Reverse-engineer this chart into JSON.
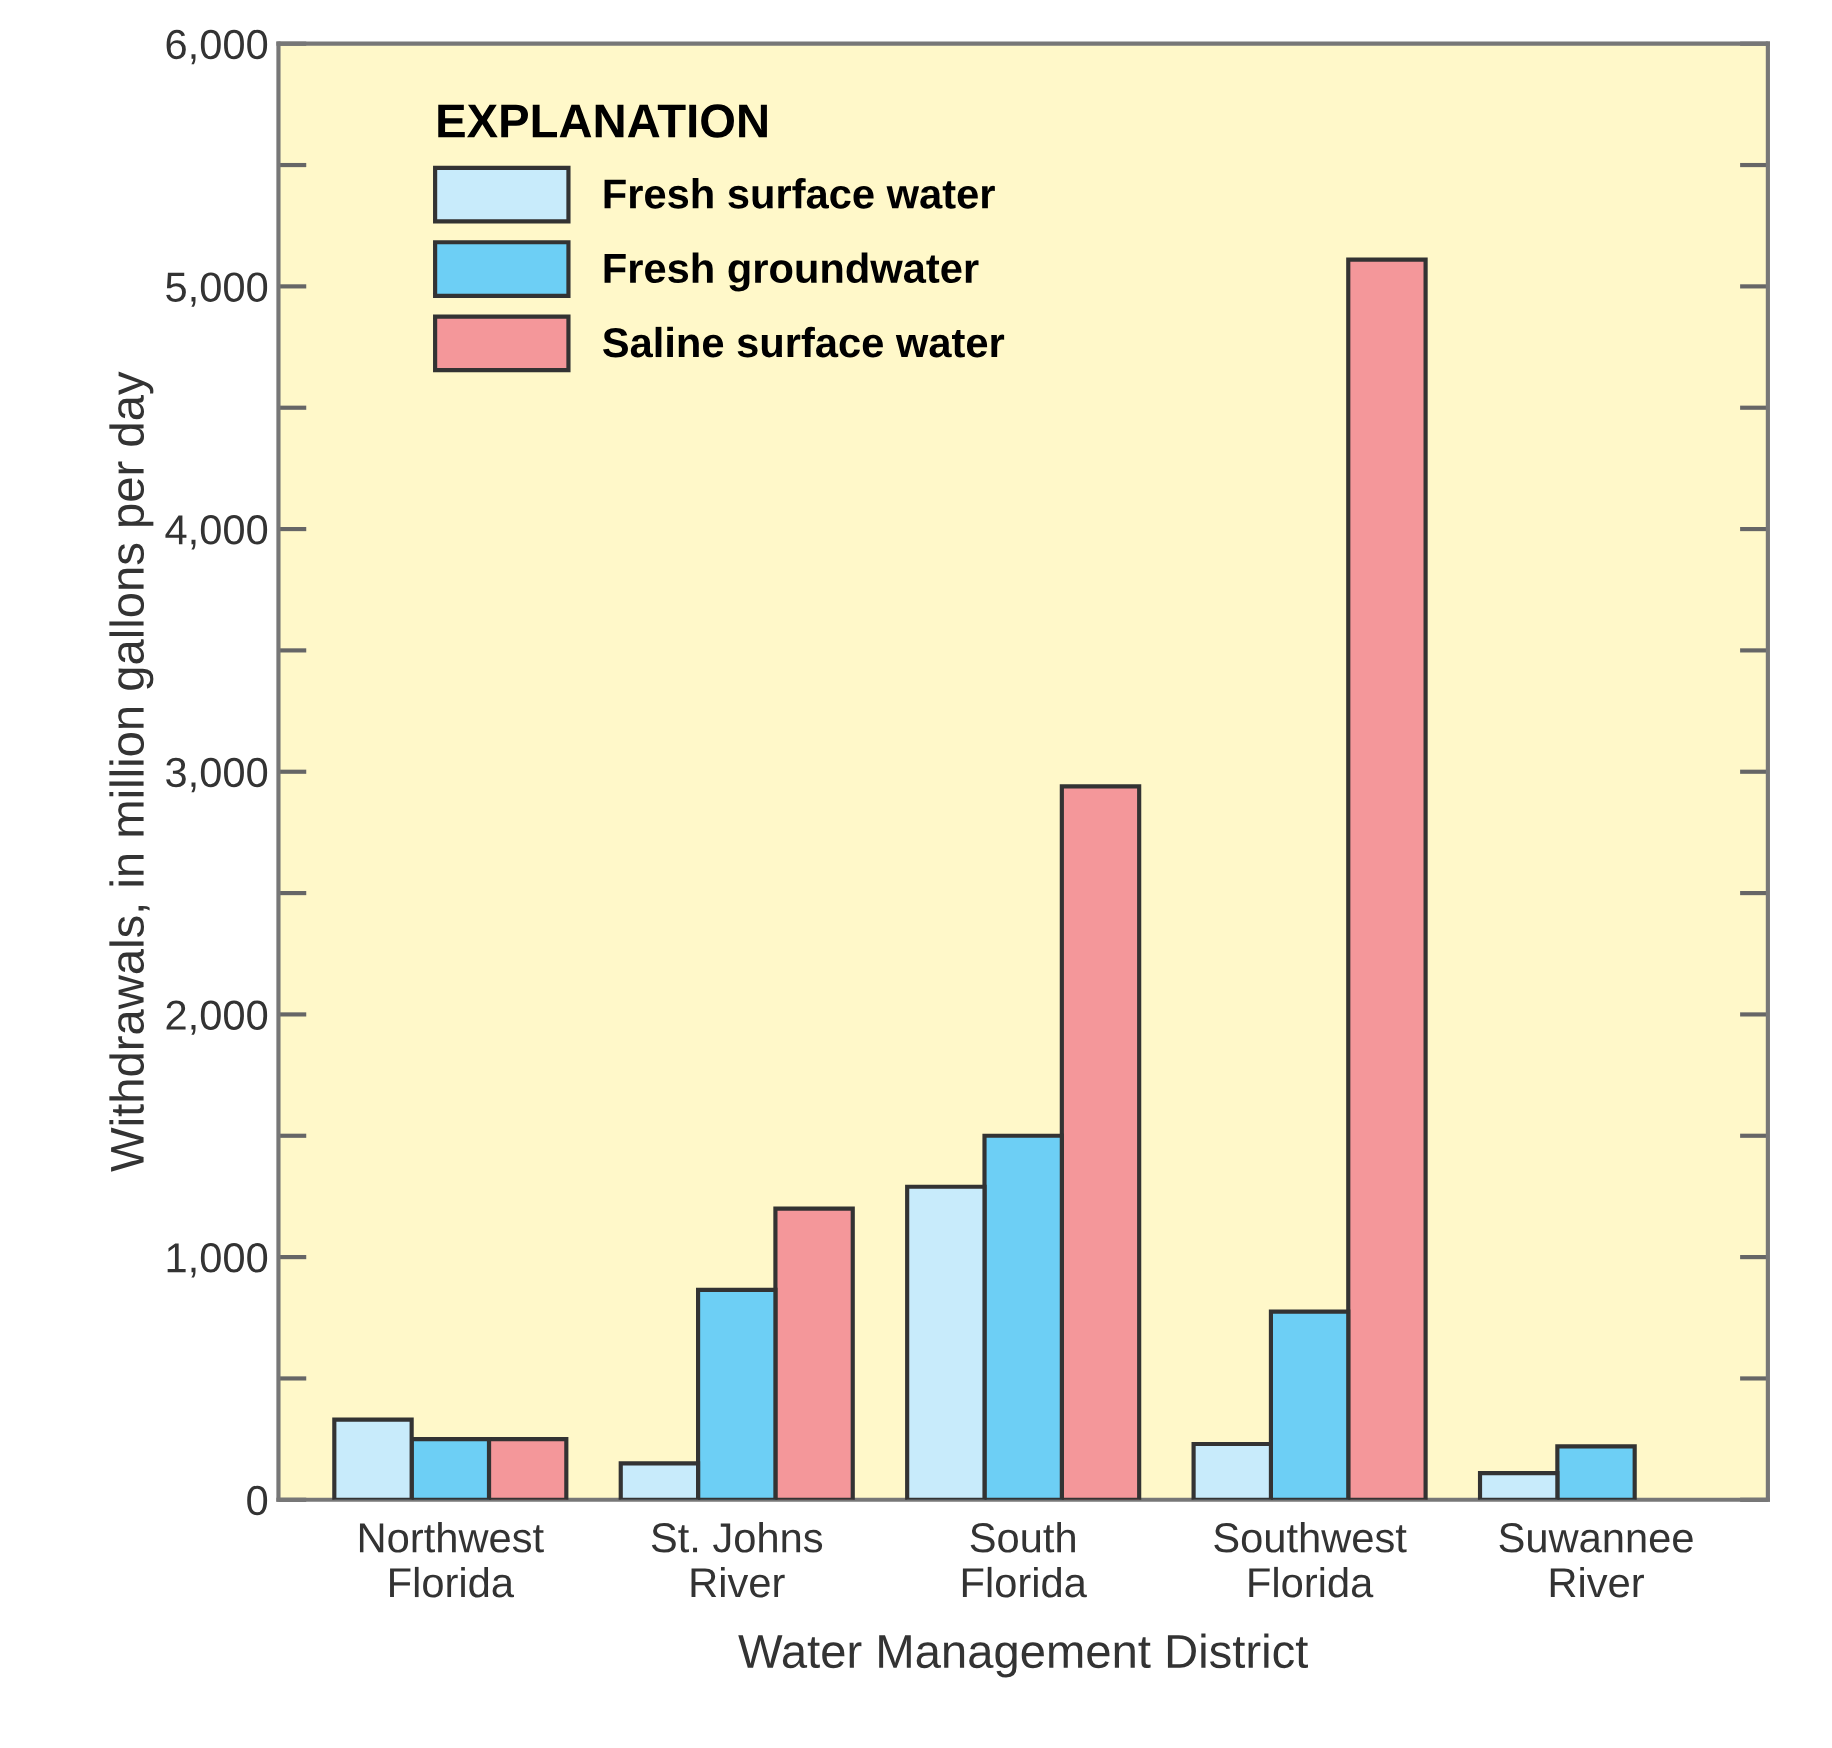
{
  "chart_data": {
    "type": "bar",
    "xlabel": "Water Management District",
    "ylabel": "Withdrawals, in million gallons per day",
    "legend_title": "EXPLANATION",
    "legend": "top left",
    "categories": [
      "Northwest\nFlorida",
      "St. Johns\nRiver",
      "South\nFlorida",
      "Southwest\nFlorida",
      "Suwannee\nRiver"
    ],
    "series": [
      {
        "name": "Fresh surface water",
        "color": "#c8ebfb",
        "values": [
          330,
          150,
          1290,
          230,
          110
        ]
      },
      {
        "name": "Fresh groundwater",
        "color": "#6dcff5",
        "values": [
          250,
          865,
          1500,
          775,
          220
        ]
      },
      {
        "name": "Saline surface water",
        "color": "#f4979a",
        "values": [
          250,
          1200,
          2940,
          5110,
          null
        ]
      }
    ],
    "ylim": [
      0,
      6000
    ],
    "yticks": [
      0,
      {
        "value": 500,
        "label": null
      },
      {
        "value": 1000,
        "label": "1,000"
      },
      {
        "value": 1500,
        "label": null
      },
      {
        "value": 2000,
        "label": "2,000"
      },
      {
        "value": 2500,
        "label": null
      },
      {
        "value": 3000,
        "label": "3,000"
      },
      {
        "value": 3500,
        "label": null
      },
      {
        "value": 4000,
        "label": "4,000"
      },
      {
        "value": 4500,
        "label": null
      },
      {
        "value": 5000,
        "label": "5,000"
      },
      {
        "value": 5500,
        "label": null
      },
      {
        "value": 6000,
        "label": "6,000"
      }
    ],
    "grid": false
  }
}
